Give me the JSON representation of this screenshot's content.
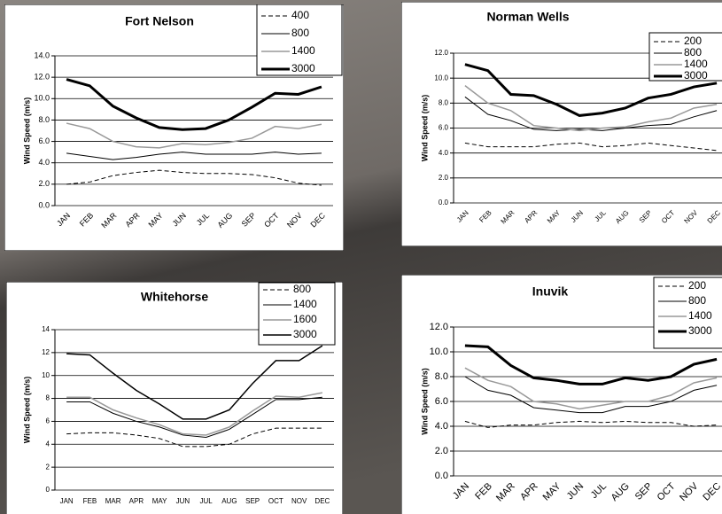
{
  "chart_data": [
    {
      "type": "line",
      "title": "Fort Nelson",
      "ylabel": "Wind Speed (m/s)",
      "categories": [
        "JAN",
        "FEB",
        "MAR",
        "APR",
        "MAY",
        "JUN",
        "JUL",
        "AUG",
        "SEP",
        "OCT",
        "NOV",
        "DEC"
      ],
      "ylim": [
        0,
        14
      ],
      "yticks": [
        {
          "value": 0,
          "label": "0.0"
        },
        {
          "value": 2,
          "label": "2.0"
        },
        {
          "value": 4,
          "label": "4.0"
        },
        {
          "value": 6,
          "label": "6.0"
        },
        {
          "value": 8,
          "label": "8.0"
        },
        {
          "value": 10,
          "label": "10.0"
        },
        {
          "value": 12,
          "label": "12.0"
        },
        {
          "value": 14,
          "label": "14.0"
        }
      ],
      "grid": true,
      "series": [
        {
          "name": "400",
          "color": "#000000",
          "linestyle": "dashed",
          "linewidth": 1,
          "values": [
            2.0,
            2.2,
            2.8,
            3.1,
            3.3,
            3.1,
            3.0,
            3.0,
            2.9,
            2.6,
            2.1,
            1.9
          ]
        },
        {
          "name": "800",
          "color": "#000000",
          "linestyle": "solid",
          "linewidth": 1,
          "values": [
            4.9,
            4.6,
            4.3,
            4.5,
            4.8,
            5.0,
            4.8,
            4.8,
            4.8,
            5.0,
            4.8,
            4.9
          ]
        },
        {
          "name": "1400",
          "color": "#999999",
          "linestyle": "solid",
          "linewidth": 1.5,
          "values": [
            7.7,
            7.2,
            6.0,
            5.5,
            5.4,
            5.8,
            5.7,
            5.9,
            6.3,
            7.4,
            7.2,
            7.6
          ]
        },
        {
          "name": "3000",
          "color": "#000000",
          "linestyle": "solid",
          "linewidth": 3,
          "values": [
            11.8,
            11.2,
            9.3,
            8.2,
            7.3,
            7.1,
            7.2,
            8.0,
            9.2,
            10.5,
            10.4,
            11.1
          ]
        }
      ]
    },
    {
      "type": "line",
      "title": "Norman Wells",
      "ylabel": "Wind Speed (m/s)",
      "categories": [
        "JAN",
        "FEB",
        "MAR",
        "APR",
        "MAY",
        "JUN",
        "JUL",
        "AUG",
        "SEP",
        "OCT",
        "NOV",
        "DEC"
      ],
      "ylim": [
        0,
        12
      ],
      "yticks": [
        {
          "value": 0,
          "label": "0.0"
        },
        {
          "value": 2,
          "label": "2.0"
        },
        {
          "value": 4,
          "label": "4.0"
        },
        {
          "value": 6,
          "label": "6.0"
        },
        {
          "value": 8,
          "label": "8.0"
        },
        {
          "value": 10,
          "label": "10.0"
        },
        {
          "value": 12,
          "label": "12.0"
        }
      ],
      "grid": true,
      "series": [
        {
          "name": "200",
          "color": "#000000",
          "linestyle": "dashed",
          "linewidth": 1,
          "values": [
            4.8,
            4.5,
            4.5,
            4.5,
            4.7,
            4.8,
            4.5,
            4.6,
            4.8,
            4.6,
            4.4,
            4.2
          ]
        },
        {
          "name": "800",
          "color": "#000000",
          "linestyle": "solid",
          "linewidth": 1,
          "values": [
            8.5,
            7.1,
            6.6,
            5.9,
            5.8,
            5.9,
            5.8,
            6.0,
            6.2,
            6.3,
            6.9,
            7.4
          ]
        },
        {
          "name": "1400",
          "color": "#999999",
          "linestyle": "solid",
          "linewidth": 1.5,
          "values": [
            9.4,
            8.0,
            7.4,
            6.2,
            6.0,
            5.8,
            6.0,
            6.1,
            6.5,
            6.8,
            7.6,
            7.9
          ]
        },
        {
          "name": "3000",
          "color": "#000000",
          "linestyle": "solid",
          "linewidth": 3,
          "values": [
            11.1,
            10.6,
            8.7,
            8.6,
            7.9,
            7.0,
            7.2,
            7.6,
            8.4,
            8.7,
            9.3,
            9.6
          ]
        }
      ]
    },
    {
      "type": "line",
      "title": "Whitehorse",
      "ylabel": "Wind Speed (m/s)",
      "categories": [
        "JAN",
        "FEB",
        "MAR",
        "APR",
        "MAY",
        "JUN",
        "JUL",
        "AUG",
        "SEP",
        "OCT",
        "NOV",
        "DEC"
      ],
      "ylim": [
        0,
        14
      ],
      "yticks": [
        0,
        2,
        4,
        6,
        8,
        10,
        12,
        14
      ],
      "grid": true,
      "series": [
        {
          "name": "800",
          "color": "#000000",
          "linestyle": "dashed",
          "linewidth": 1,
          "values": [
            4.9,
            5.0,
            5.0,
            4.8,
            4.5,
            3.8,
            3.8,
            4.0,
            4.9,
            5.4,
            5.4,
            5.4
          ]
        },
        {
          "name": "1400",
          "color": "#000000",
          "linestyle": "solid",
          "linewidth": 1,
          "values": [
            7.7,
            7.7,
            6.7,
            6.0,
            5.5,
            4.8,
            4.6,
            5.3,
            6.6,
            7.9,
            7.9,
            8.1
          ]
        },
        {
          "name": "1600",
          "color": "#999999",
          "linestyle": "solid",
          "linewidth": 1.5,
          "values": [
            8.1,
            8.1,
            7.0,
            6.3,
            5.7,
            4.9,
            4.8,
            5.5,
            6.9,
            8.2,
            8.1,
            8.5
          ]
        },
        {
          "name": "3000",
          "color": "#000000",
          "linestyle": "solid",
          "linewidth": 1.5,
          "values": [
            11.9,
            11.8,
            10.2,
            8.7,
            7.5,
            6.2,
            6.2,
            7.0,
            9.3,
            11.3,
            11.3,
            12.6
          ]
        }
      ]
    },
    {
      "type": "line",
      "title": "Inuvik",
      "ylabel": "Wind Speed (m/s)",
      "categories": [
        "JAN",
        "FEB",
        "MAR",
        "APR",
        "MAY",
        "JUN",
        "JUL",
        "AUG",
        "SEP",
        "OCT",
        "NOV",
        "DEC"
      ],
      "ylim": [
        0,
        12
      ],
      "yticks": [
        {
          "value": 0,
          "label": "0.0"
        },
        {
          "value": 2,
          "label": "2.0"
        },
        {
          "value": 4,
          "label": "4.0"
        },
        {
          "value": 6,
          "label": "6.0"
        },
        {
          "value": 8,
          "label": "8.0"
        },
        {
          "value": 10,
          "label": "10.0"
        },
        {
          "value": 12,
          "label": "12.0"
        }
      ],
      "grid": true,
      "series": [
        {
          "name": "200",
          "color": "#000000",
          "linestyle": "dashed",
          "linewidth": 1,
          "values": [
            4.4,
            3.9,
            4.1,
            4.1,
            4.3,
            4.4,
            4.3,
            4.4,
            4.3,
            4.3,
            4.0,
            4.1
          ]
        },
        {
          "name": "800",
          "color": "#000000",
          "linestyle": "solid",
          "linewidth": 1,
          "values": [
            8.0,
            6.9,
            6.5,
            5.5,
            5.3,
            5.1,
            5.1,
            5.6,
            5.6,
            6.0,
            6.9,
            7.3
          ]
        },
        {
          "name": "1400",
          "color": "#999999",
          "linestyle": "solid",
          "linewidth": 1.5,
          "values": [
            8.7,
            7.7,
            7.2,
            6.0,
            5.8,
            5.4,
            5.7,
            6.0,
            6.0,
            6.5,
            7.5,
            7.9
          ]
        },
        {
          "name": "3000",
          "color": "#000000",
          "linestyle": "solid",
          "linewidth": 3,
          "values": [
            10.5,
            10.4,
            8.9,
            7.9,
            7.7,
            7.4,
            7.4,
            7.9,
            7.7,
            8.0,
            9.0,
            9.4
          ]
        }
      ]
    }
  ]
}
